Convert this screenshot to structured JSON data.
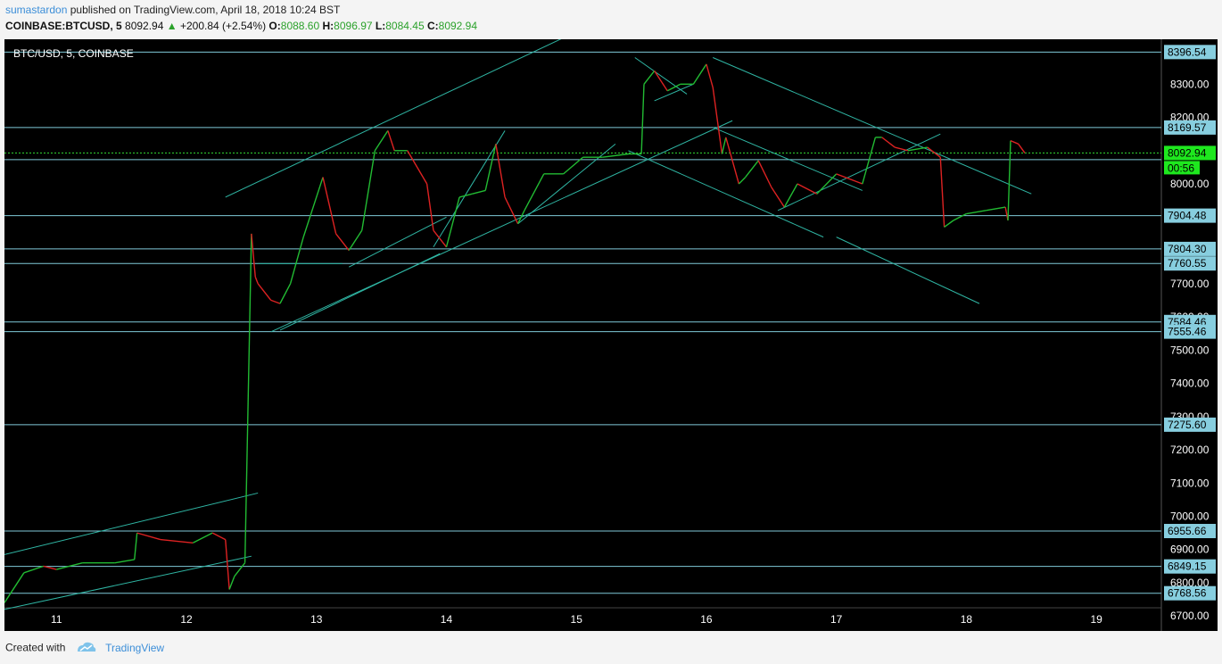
{
  "header": {
    "author": "sumastardon",
    "published": "published on TradingView.com, April 18, 2018 10:24 BST",
    "symbol": "COINBASE:BTCUSD, 5",
    "last": "8092.94",
    "arrow": "▲",
    "change": "+200.84 (+2.54%)",
    "o_label": "O:",
    "o_value": "8088.60",
    "h_label": "H:",
    "h_value": "8096.97",
    "l_label": "L:",
    "l_value": "8084.45",
    "c_label": "C:",
    "c_value": "8092.94"
  },
  "footer": {
    "created_with": "Created with",
    "brand": "TradingView"
  },
  "chart_data": {
    "type": "line",
    "title": "BTC/USD, 5, COINBASE",
    "x_ticks": [
      "11",
      "12",
      "13",
      "14",
      "15",
      "16",
      "17",
      "18",
      "19"
    ],
    "y_ticks": [
      "6700.00",
      "6800.00",
      "6900.00",
      "7000.00",
      "7100.00",
      "7200.00",
      "7300.00",
      "7400.00",
      "7500.00",
      "7600.00",
      "7700.00",
      "7800.00",
      "7900.00",
      "8000.00",
      "8100.00",
      "8200.00",
      "8300.00"
    ],
    "ylim": [
      6655,
      8435
    ],
    "xlim": [
      10.6,
      19.5
    ],
    "horizontal_levels": [
      "8396.54",
      "8169.57",
      "8073.00",
      "7904.48",
      "7804.30",
      "7760.55",
      "7584.46",
      "7555.46",
      "7275.60",
      "6955.66",
      "6849.15",
      "6768.56"
    ],
    "current_price": "8092.94",
    "countdown": "00:56",
    "series": [
      {
        "x": [
          10.6,
          10.75,
          10.9,
          11.0,
          11.2,
          11.45,
          11.6,
          11.62,
          11.8,
          12.05,
          12.2,
          12.3,
          12.33,
          12.37,
          12.45,
          12.5,
          12.53,
          12.55,
          12.65,
          12.72,
          12.8,
          12.9,
          13.05,
          13.15,
          13.25,
          13.35,
          13.45,
          13.55,
          13.6,
          13.7,
          13.85,
          13.9,
          14.0,
          14.1,
          14.2,
          14.3,
          14.38,
          14.45,
          14.55,
          14.6,
          14.75,
          14.9,
          15.05,
          15.2,
          15.4,
          15.5,
          15.52,
          15.6,
          15.7,
          15.8,
          15.9,
          16.0,
          16.05,
          16.12,
          16.15,
          16.25,
          16.3,
          16.4,
          16.5,
          16.6,
          16.7,
          16.85,
          17.0,
          17.2,
          17.3,
          17.35,
          17.45,
          17.55,
          17.7,
          17.8,
          17.83,
          17.9,
          18.0,
          18.15,
          18.3,
          18.32,
          18.34,
          18.4,
          18.45
        ],
        "y": [
          6740,
          6830,
          6850,
          6840,
          6860,
          6860,
          6870,
          6950,
          6930,
          6920,
          6950,
          6930,
          6780,
          6820,
          6860,
          7850,
          7720,
          7700,
          7650,
          7640,
          7700,
          7840,
          8020,
          7850,
          7800,
          7860,
          8100,
          8160,
          8100,
          8100,
          8000,
          7860,
          7810,
          7960,
          7970,
          7980,
          8120,
          7960,
          7880,
          7920,
          8030,
          8030,
          8080,
          8080,
          8090,
          8090,
          8300,
          8340,
          8280,
          8300,
          8300,
          8360,
          8290,
          8090,
          8140,
          8000,
          8020,
          8070,
          7990,
          7930,
          8000,
          7970,
          8030,
          8000,
          8140,
          8140,
          8110,
          8100,
          8110,
          8080,
          7870,
          7890,
          7910,
          7920,
          7930,
          7890,
          8130,
          8120,
          8092.94
        ]
      }
    ],
    "trendlines": [
      {
        "x1": 10.6,
        "y1": 6885,
        "x2": 12.55,
        "y2": 7070
      },
      {
        "x1": 10.6,
        "y1": 6720,
        "x2": 12.5,
        "y2": 6880
      },
      {
        "x1": 12.65,
        "y1": 7555,
        "x2": 16.2,
        "y2": 8190
      },
      {
        "x1": 12.3,
        "y1": 7960,
        "x2": 15.5,
        "y2": 8550
      },
      {
        "x1": 12.55,
        "y1": 7760,
        "x2": 13.2,
        "y2": 7760
      },
      {
        "x1": 12.72,
        "y1": 7560,
        "x2": 13.95,
        "y2": 7790
      },
      {
        "x1": 13.25,
        "y1": 7750,
        "x2": 14.0,
        "y2": 7900
      },
      {
        "x1": 13.9,
        "y1": 7810,
        "x2": 14.45,
        "y2": 8160
      },
      {
        "x1": 14.55,
        "y1": 7880,
        "x2": 15.3,
        "y2": 8120
      },
      {
        "x1": 15.4,
        "y1": 8100,
        "x2": 16.9,
        "y2": 7840
      },
      {
        "x1": 16.05,
        "y1": 8380,
        "x2": 18.5,
        "y2": 7970
      },
      {
        "x1": 16.05,
        "y1": 8170,
        "x2": 17.2,
        "y2": 7980
      },
      {
        "x1": 16.55,
        "y1": 7920,
        "x2": 17.8,
        "y2": 8150
      },
      {
        "x1": 17.0,
        "y1": 7840,
        "x2": 18.1,
        "y2": 7640
      },
      {
        "x1": 15.45,
        "y1": 8380,
        "x2": 15.85,
        "y2": 8270
      },
      {
        "x1": 15.6,
        "y1": 8250,
        "x2": 15.9,
        "y2": 8300
      }
    ]
  }
}
